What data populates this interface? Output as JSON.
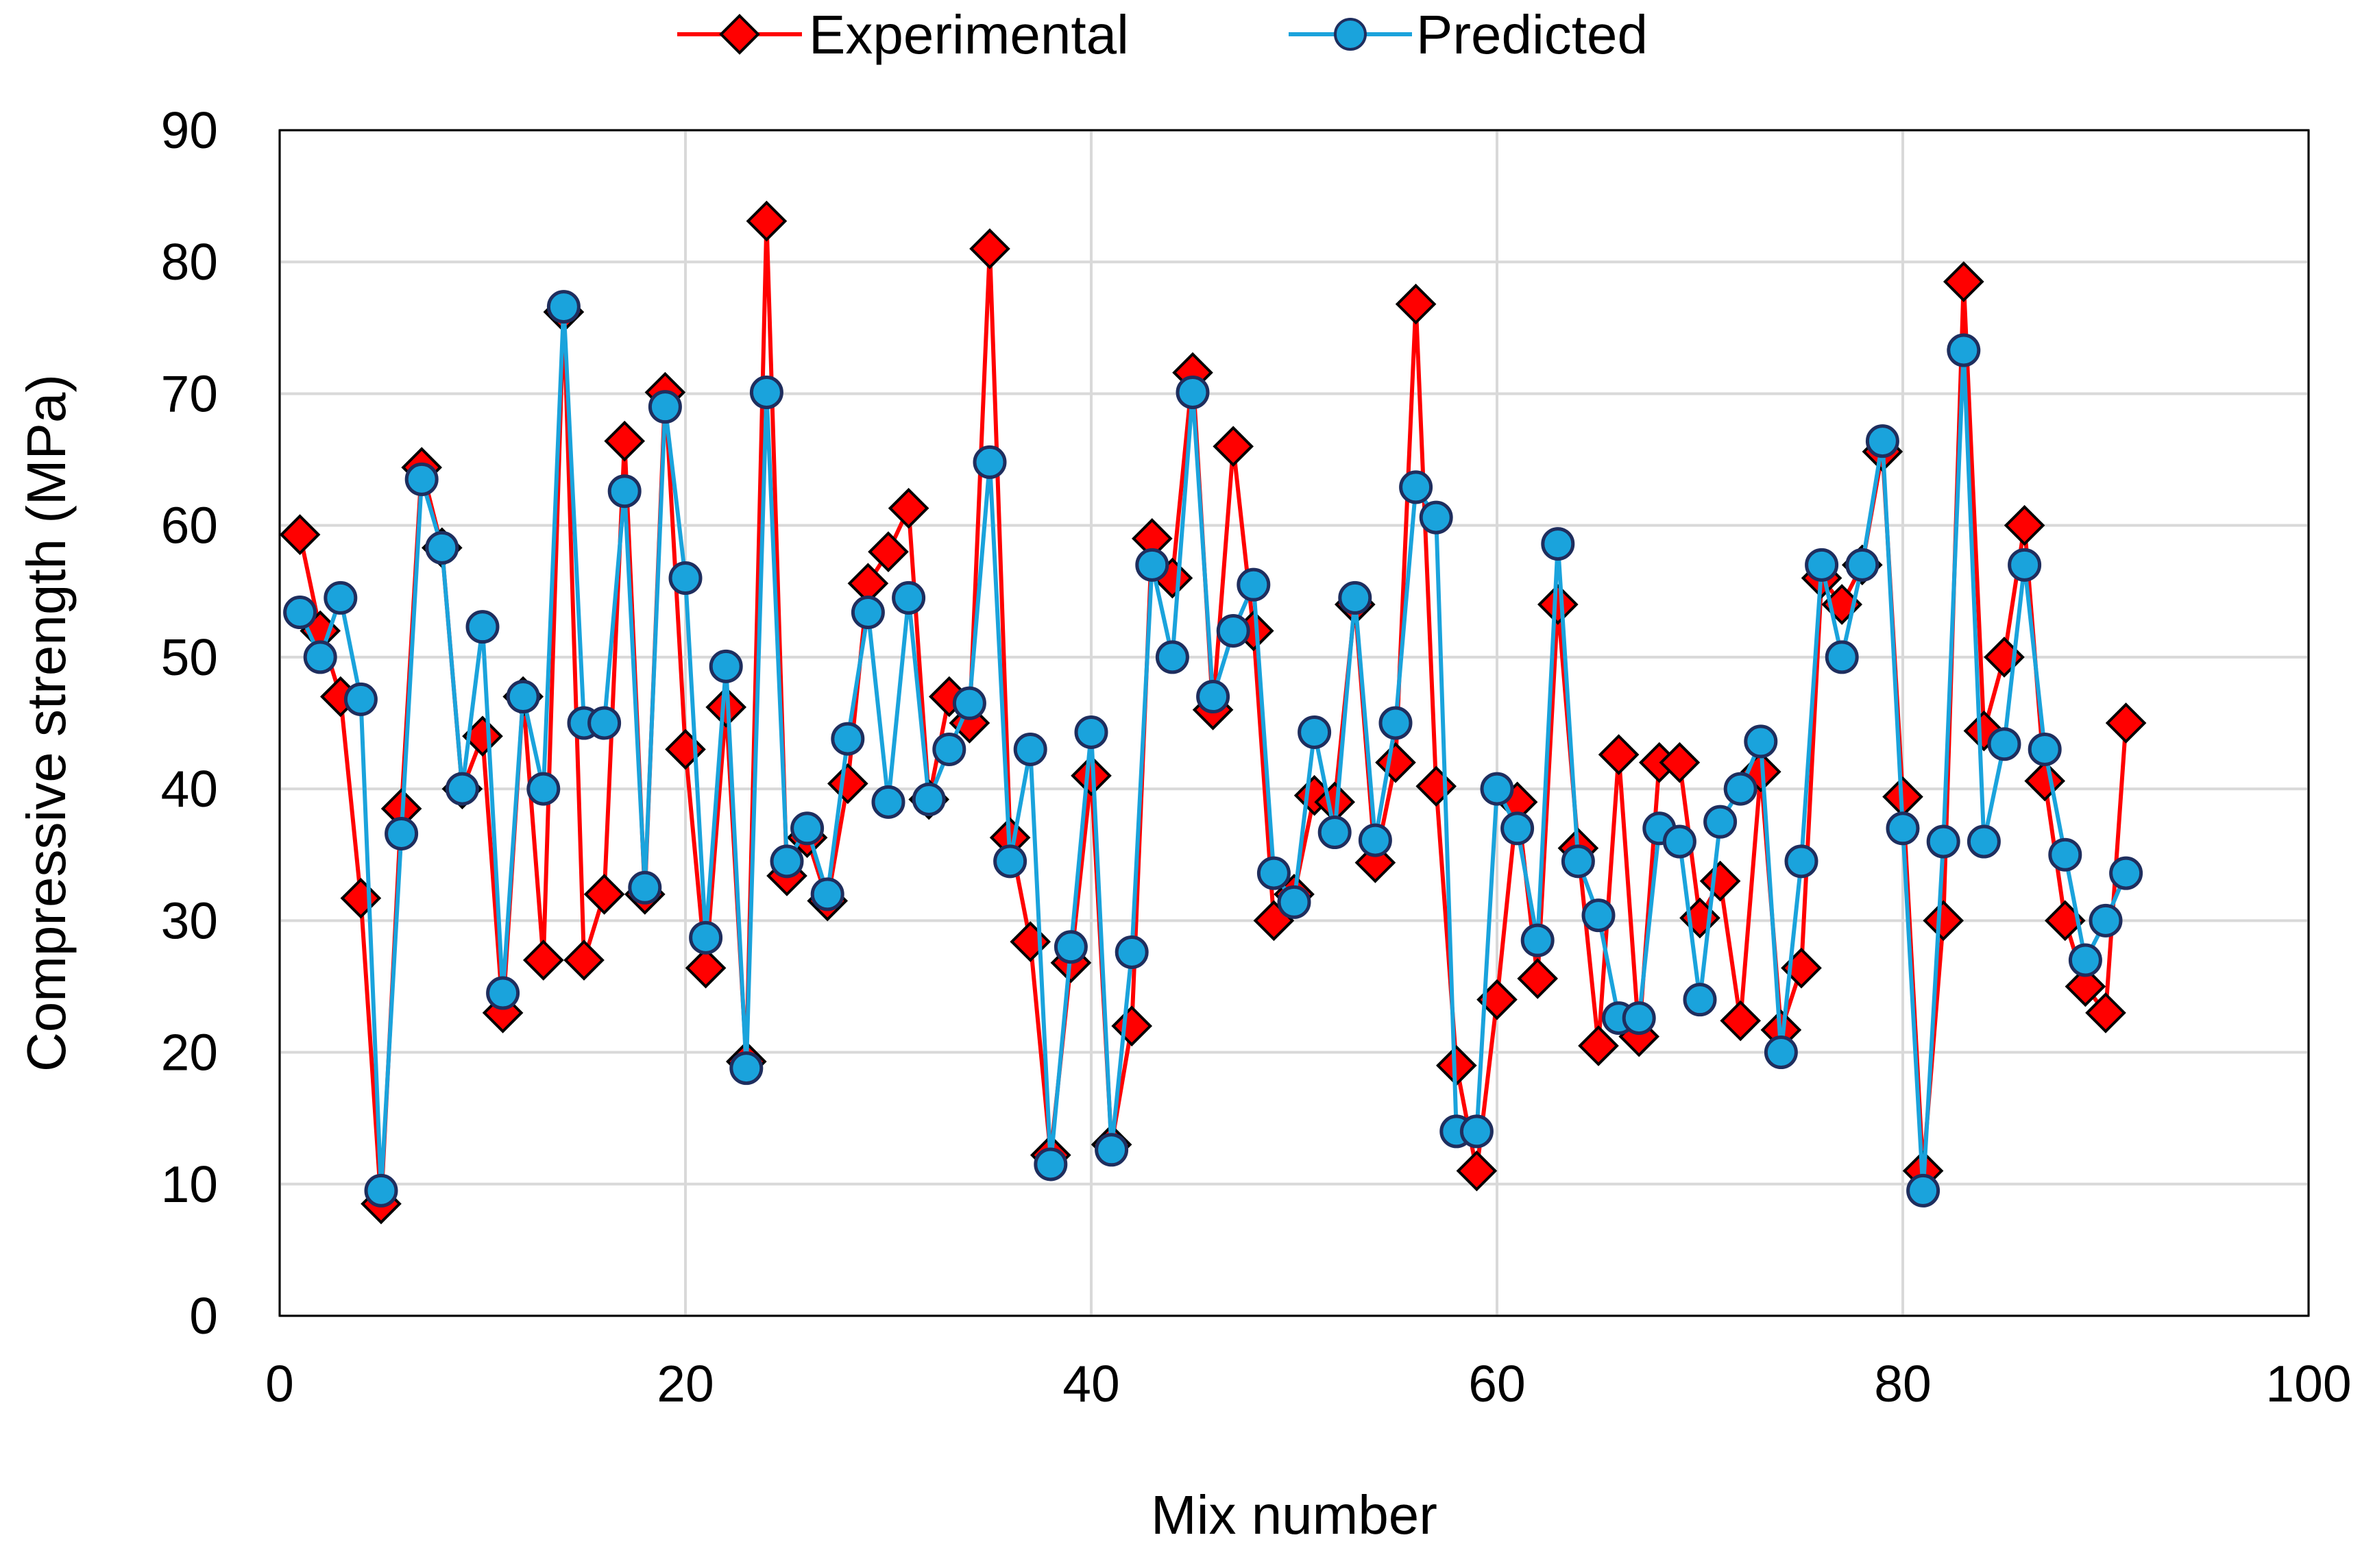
{
  "colors": {
    "experimental_line": "#ff0000",
    "experimental_marker": "#ff0000",
    "predicted_line": "#1aa3dc",
    "predicted_marker": "#1aa3dc",
    "marker_edge": "#000000",
    "predicted_edge": "#1f2e5e",
    "grid": "#d9d9d9",
    "axis": "#000000"
  },
  "chart_data": {
    "type": "line",
    "title": "",
    "xlabel": "Mix number",
    "ylabel": "Compressive strength (MPa)",
    "xlim": [
      0,
      100
    ],
    "ylim": [
      0,
      90
    ],
    "xticks": [
      0,
      20,
      40,
      60,
      80,
      100
    ],
    "yticks": [
      0,
      10,
      20,
      30,
      40,
      50,
      60,
      70,
      80,
      90
    ],
    "grid": true,
    "legend_position": "top-center",
    "x": [
      1,
      2,
      3,
      4,
      5,
      6,
      7,
      8,
      9,
      10,
      11,
      12,
      13,
      14,
      15,
      16,
      17,
      18,
      19,
      20,
      21,
      22,
      23,
      24,
      25,
      26,
      27,
      28,
      29,
      30,
      31,
      32,
      33,
      34,
      35,
      36,
      37,
      38,
      39,
      40,
      41,
      42,
      43,
      44,
      45,
      46,
      47,
      48,
      49,
      50,
      51,
      52,
      53,
      54,
      55,
      56,
      57,
      58,
      59,
      60,
      61,
      62,
      63,
      64,
      65,
      66,
      67,
      68,
      69,
      70,
      71,
      72,
      73,
      74,
      75,
      76,
      77,
      78,
      79,
      80,
      81,
      82,
      83,
      84,
      85,
      86,
      87,
      88,
      89,
      90,
      91
    ],
    "series": [
      {
        "name": "Experimental",
        "marker": "diamond",
        "values": [
          59.3,
          52,
          47,
          31.7,
          8.5,
          38.5,
          64.4,
          58.3,
          40,
          44,
          23,
          47,
          27,
          76.2,
          27,
          32,
          66.4,
          32,
          70.1,
          43,
          26.4,
          46.2,
          19.3,
          83.1,
          33.4,
          36.3,
          31.5,
          40.4,
          55.6,
          58,
          61.3,
          39.2,
          47,
          45,
          81,
          36.3,
          28.4,
          12.2,
          26.8,
          41,
          13,
          22,
          59,
          56,
          71.6,
          46,
          66,
          52,
          30,
          32,
          39.5,
          39,
          54,
          34.4,
          42,
          76.8,
          40.2,
          19,
          11,
          24,
          39,
          25.6,
          54,
          35.5,
          20.5,
          42.6,
          21.2,
          42,
          42,
          30.2,
          33,
          22.4,
          41.3,
          21.7,
          26.4,
          56,
          54,
          57,
          65.6,
          39.4,
          11,
          30,
          78.5,
          44.4,
          50,
          60,
          40.6,
          30,
          25,
          23,
          45
        ],
        "color": "#ff0000"
      },
      {
        "name": "Predicted",
        "marker": "circle",
        "values": [
          53.4,
          50,
          54.5,
          46.8,
          9.5,
          36.6,
          63.5,
          58.3,
          40,
          52.3,
          24.5,
          47,
          40,
          76.6,
          45,
          45,
          62.6,
          32.5,
          69,
          56,
          28.7,
          49.3,
          18.8,
          70.1,
          34.5,
          37,
          32,
          43.8,
          53.4,
          39,
          54.5,
          39.2,
          43,
          46.5,
          64.8,
          34.5,
          43,
          11.5,
          28,
          44.3,
          12.6,
          27.6,
          57,
          50,
          70.1,
          47,
          52,
          55.5,
          33.6,
          31.4,
          44.3,
          36.7,
          54.5,
          36.1,
          45,
          62.9,
          60.6,
          14,
          14,
          40,
          37,
          28.5,
          58.6,
          34.5,
          30.4,
          22.6,
          22.6,
          37,
          36,
          24,
          37.5,
          40,
          43.6,
          20,
          34.5,
          57,
          50,
          57,
          66.4,
          37,
          9.5,
          36,
          73.3,
          36,
          43.4,
          57,
          43,
          35,
          27,
          30,
          33.6
        ],
        "color": "#1aa3dc"
      }
    ]
  }
}
